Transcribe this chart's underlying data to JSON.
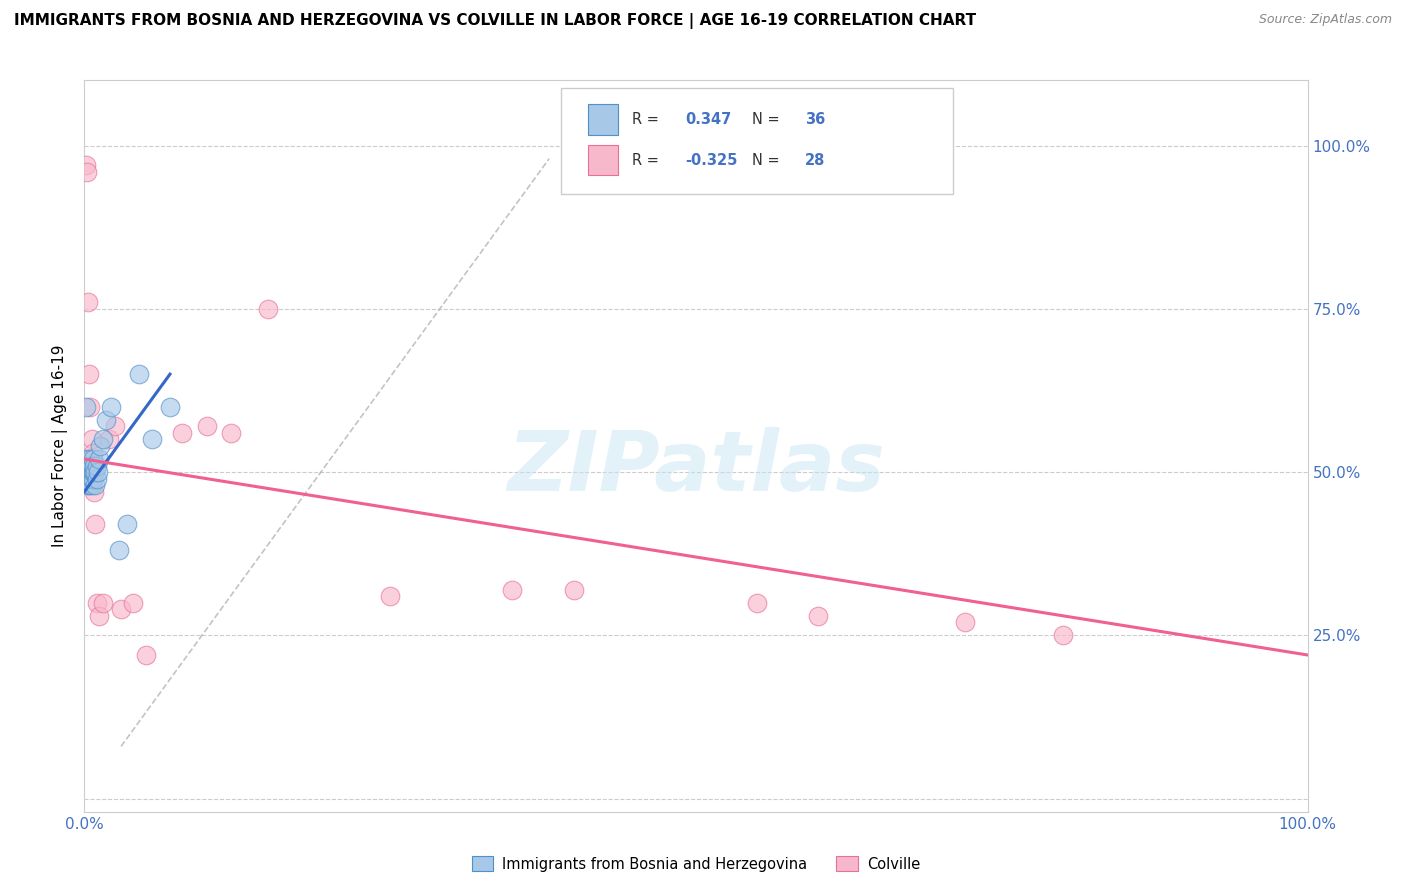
{
  "title": "IMMIGRANTS FROM BOSNIA AND HERZEGOVINA VS COLVILLE IN LABOR FORCE | AGE 16-19 CORRELATION CHART",
  "source": "Source: ZipAtlas.com",
  "ylabel": "In Labor Force | Age 16-19",
  "legend1_label": "Immigrants from Bosnia and Herzegovina",
  "legend2_label": "Colville",
  "R1": 0.347,
  "N1": 36,
  "R2": -0.325,
  "N2": 28,
  "blue_fill": "#a8c8e8",
  "blue_edge": "#5090c8",
  "pink_fill": "#f8b8cc",
  "pink_edge": "#e87098",
  "blue_line": "#3368c8",
  "pink_line": "#f06090",
  "gray_dash": "#aaaaaa",
  "blue_scatter_x": [
    0.001,
    0.002,
    0.002,
    0.003,
    0.003,
    0.003,
    0.004,
    0.004,
    0.004,
    0.005,
    0.005,
    0.005,
    0.006,
    0.006,
    0.006,
    0.006,
    0.007,
    0.007,
    0.007,
    0.008,
    0.008,
    0.009,
    0.009,
    0.01,
    0.01,
    0.011,
    0.012,
    0.013,
    0.015,
    0.018,
    0.022,
    0.028,
    0.035,
    0.045,
    0.055,
    0.07
  ],
  "blue_scatter_y": [
    0.6,
    0.5,
    0.52,
    0.48,
    0.5,
    0.51,
    0.48,
    0.5,
    0.51,
    0.49,
    0.5,
    0.52,
    0.48,
    0.49,
    0.5,
    0.51,
    0.49,
    0.5,
    0.52,
    0.5,
    0.51,
    0.48,
    0.5,
    0.49,
    0.51,
    0.5,
    0.52,
    0.54,
    0.55,
    0.58,
    0.6,
    0.38,
    0.42,
    0.65,
    0.55,
    0.6
  ],
  "pink_scatter_x": [
    0.001,
    0.002,
    0.003,
    0.004,
    0.005,
    0.006,
    0.007,
    0.008,
    0.009,
    0.01,
    0.012,
    0.015,
    0.02,
    0.025,
    0.03,
    0.04,
    0.05,
    0.08,
    0.1,
    0.12,
    0.15,
    0.25,
    0.35,
    0.4,
    0.55,
    0.6,
    0.72,
    0.8
  ],
  "pink_scatter_y": [
    0.97,
    0.96,
    0.76,
    0.65,
    0.6,
    0.55,
    0.53,
    0.47,
    0.42,
    0.3,
    0.28,
    0.3,
    0.55,
    0.57,
    0.29,
    0.3,
    0.22,
    0.56,
    0.57,
    0.56,
    0.75,
    0.31,
    0.32,
    0.32,
    0.3,
    0.28,
    0.27,
    0.25
  ],
  "blue_line_x": [
    0.0,
    0.07
  ],
  "blue_line_y": [
    0.47,
    0.65
  ],
  "pink_line_x": [
    0.0,
    1.0
  ],
  "pink_line_y": [
    0.52,
    0.22
  ],
  "dash_line_x": [
    0.03,
    0.38
  ],
  "dash_line_y": [
    0.08,
    0.98
  ],
  "xlim": [
    0.0,
    1.0
  ],
  "ylim": [
    -0.02,
    1.1
  ],
  "y_ticks": [
    0.0,
    0.25,
    0.5,
    0.75,
    1.0
  ],
  "y_tick_right_labels": [
    "",
    "25.0%",
    "50.0%",
    "75.0%",
    "100.0%"
  ],
  "watermark_text": "ZIPatlas",
  "title_fontsize": 11,
  "axis_label_color": "#4472c4"
}
